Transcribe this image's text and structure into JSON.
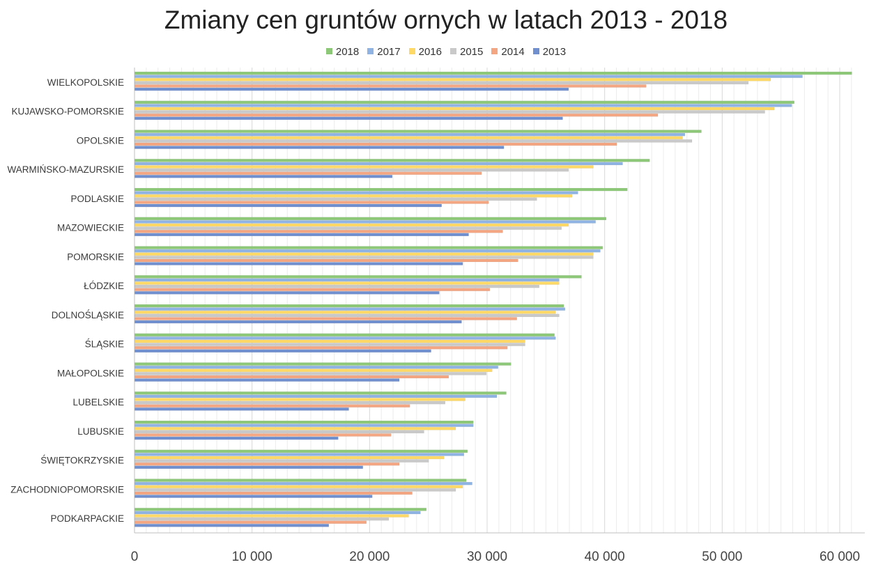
{
  "chart_data": {
    "type": "bar",
    "orientation": "horizontal",
    "title": "Zmiany cen gruntów ornych w latach 2013 - 2018",
    "categories": [
      "WIELKOPOLSKIE",
      "KUJAWSKO-POMORSKIE",
      "OPOLSKIE",
      "WARMIŃSKO-MAZURSKIE",
      "PODLASKIE",
      "MAZOWIECKIE",
      "POMORSKIE",
      "ŁÓDZKIE",
      "DOLNOŚLĄSKIE",
      "ŚLĄSKIE",
      "MAŁOPOLSKIE",
      "LUBELSKIE",
      "LUBUSKIE",
      "ŚWIĘTOKRZYSKIE",
      "ZACHODNIOPOMORSKIE",
      "PODKARPACKIE"
    ],
    "series": [
      {
        "name": "2018",
        "color": "#8dc878",
        "values": [
          61000,
          56100,
          48200,
          43800,
          41900,
          40100,
          39800,
          38000,
          36500,
          35700,
          32000,
          31600,
          28800,
          28300,
          28200,
          24800
        ]
      },
      {
        "name": "2017",
        "color": "#8fb4e3",
        "values": [
          56800,
          55900,
          46800,
          41500,
          37700,
          39200,
          39600,
          36100,
          36600,
          35800,
          30900,
          30800,
          28800,
          28000,
          28700,
          24300
        ]
      },
      {
        "name": "2016",
        "color": "#ffd966",
        "values": [
          54100,
          54400,
          46600,
          39000,
          37200,
          36900,
          39000,
          36100,
          35800,
          33200,
          30400,
          28100,
          27300,
          26300,
          27900,
          23300
        ]
      },
      {
        "name": "2015",
        "color": "#c9c9c9",
        "values": [
          52200,
          53600,
          47400,
          36900,
          34200,
          36300,
          39000,
          34400,
          36100,
          33200,
          29900,
          26400,
          24600,
          25000,
          27300,
          21600
        ]
      },
      {
        "name": "2014",
        "color": "#f4a582",
        "values": [
          43500,
          44500,
          41000,
          29500,
          30100,
          31300,
          32600,
          30200,
          32500,
          31700,
          26700,
          23400,
          21800,
          22500,
          23600,
          19700
        ]
      },
      {
        "name": "2013",
        "color": "#6f8fcf",
        "values": [
          36900,
          36400,
          31400,
          21900,
          26100,
          28400,
          27900,
          25900,
          27800,
          25200,
          22500,
          18200,
          17300,
          19400,
          20200,
          16500
        ]
      }
    ],
    "legend_order": [
      "2018",
      "2017",
      "2016",
      "2015",
      "2014",
      "2013"
    ],
    "xlim": [
      0,
      62000
    ],
    "xticks": [
      0,
      10000,
      20000,
      30000,
      40000,
      50000,
      60000
    ],
    "xtick_labels": [
      "0",
      "10 000",
      "20 000",
      "30 000",
      "40 000",
      "50 000",
      "60 000"
    ],
    "grid": "vertical minor lines",
    "legend_position": "top"
  }
}
